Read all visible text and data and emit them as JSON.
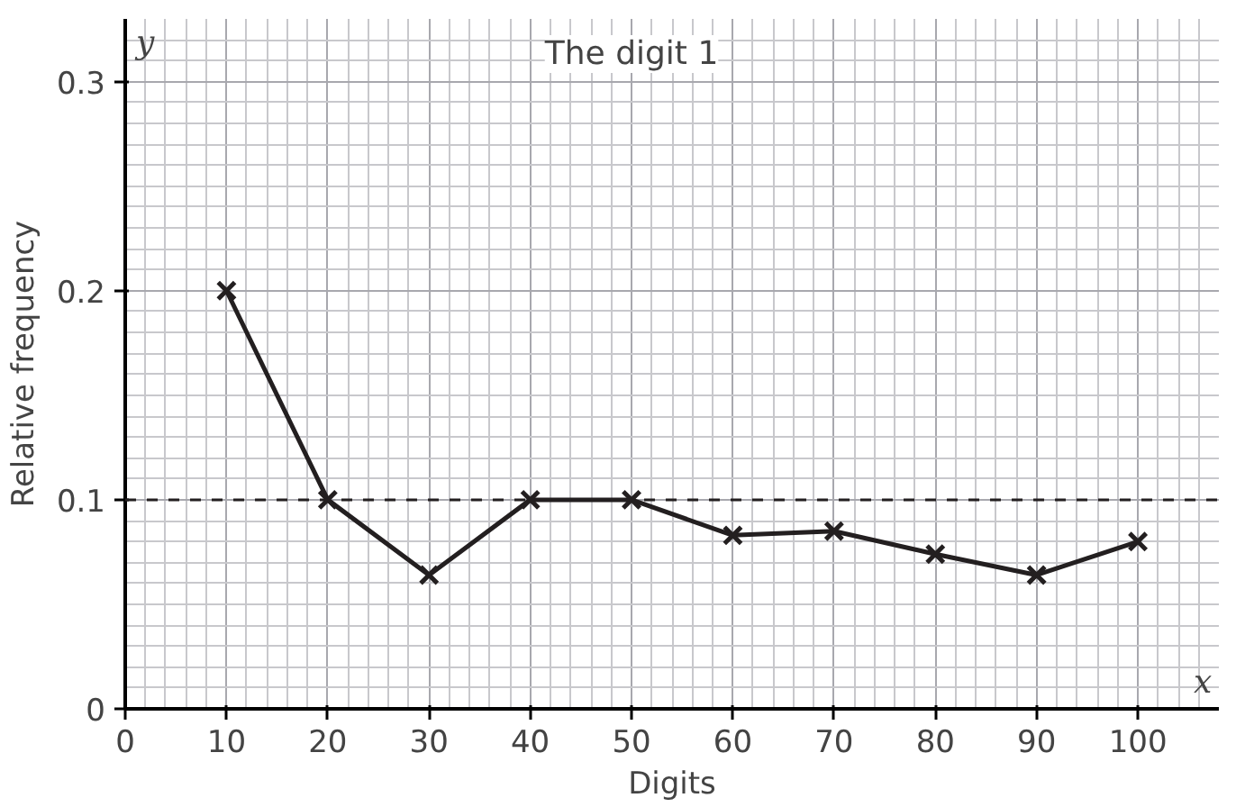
{
  "chart_data": {
    "type": "line",
    "title": "The digit 1",
    "xlabel": "Digits",
    "ylabel": "Relative frequency",
    "annotations": [
      "y",
      "x"
    ],
    "x": [
      10,
      20,
      30,
      40,
      50,
      60,
      70,
      80,
      90,
      100
    ],
    "series": [
      {
        "color": "#231f20",
        "values": [
          0.2,
          0.1,
          0.064,
          0.1,
          0.1,
          0.083,
          0.085,
          0.074,
          0.064,
          0.08
        ]
      }
    ],
    "xlim": [
      0,
      108
    ],
    "ylim": [
      0,
      0.33
    ],
    "xticks": [
      0,
      10,
      20,
      30,
      40,
      50,
      60,
      70,
      80,
      90,
      100
    ],
    "yticks": [
      0,
      0.1,
      0.2,
      0.3
    ],
    "ref_lines": [
      {
        "axis": "y",
        "value": 0.1,
        "line_style": "dashed",
        "color": "#231f20"
      }
    ],
    "grid": true,
    "marker": "cross",
    "line_style": "solid"
  }
}
